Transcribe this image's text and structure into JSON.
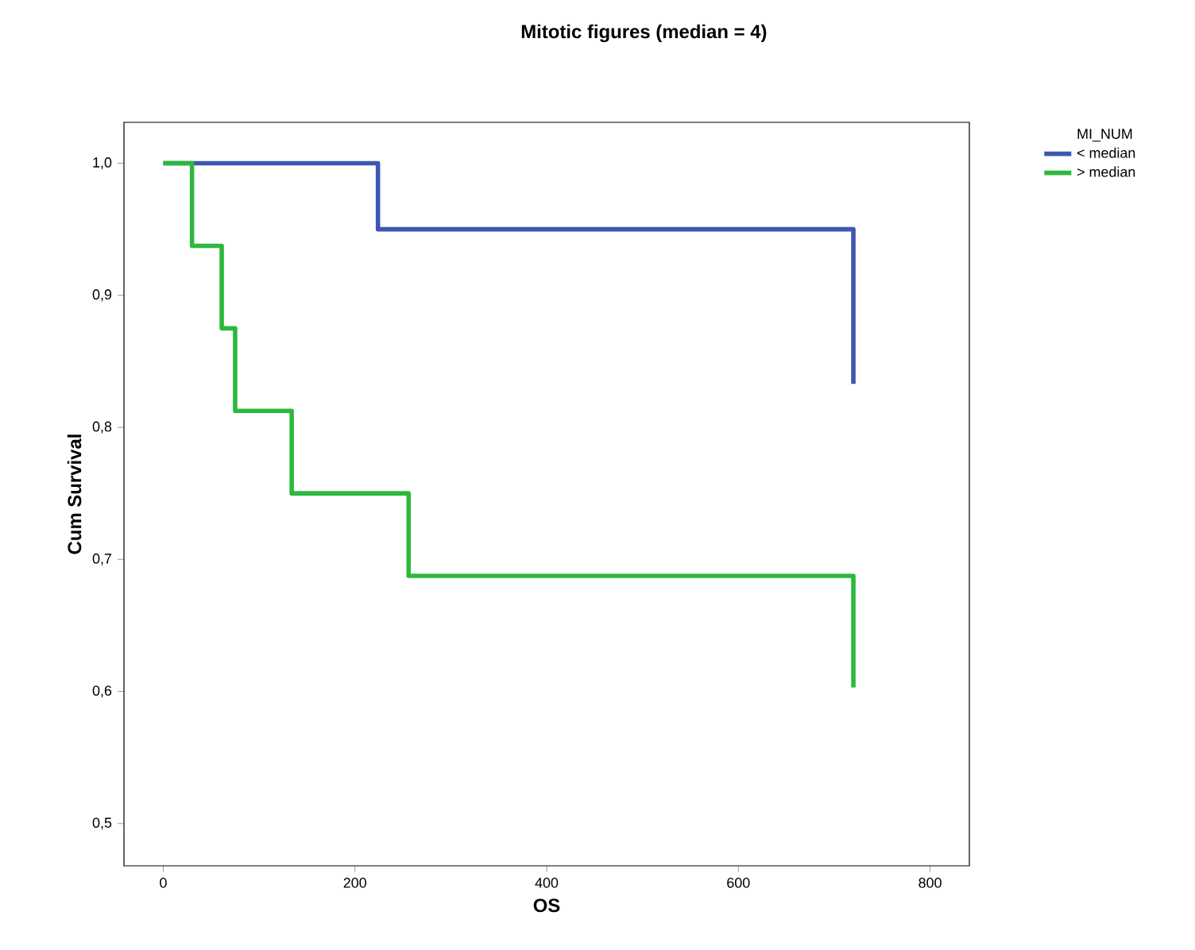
{
  "chart_data": {
    "type": "step",
    "title": "Mitotic figures (median = 4)",
    "xlabel": "OS",
    "ylabel": "Cum Survival",
    "legend_title": "MI_NUM",
    "legend": "top right",
    "xlim": [
      -41,
      841
    ],
    "ylim": [
      0.468,
      1.031
    ],
    "xticks": [
      0,
      200,
      400,
      600,
      800
    ],
    "yticks": [
      {
        "value": 0.5,
        "label": "0,5"
      },
      {
        "value": 0.6,
        "label": "0,6"
      },
      {
        "value": 0.7,
        "label": "0,7"
      },
      {
        "value": 0.8,
        "label": "0,8"
      },
      {
        "value": 0.9,
        "label": "0,9"
      },
      {
        "value": 1.0,
        "label": "1,0"
      }
    ],
    "series": [
      {
        "name": "< median",
        "color": "#3e56b0",
        "x": [
          0,
          224,
          720,
          720
        ],
        "values": [
          1.0,
          0.95,
          0.95,
          0.833
        ]
      },
      {
        "name": "> median",
        "color": "#2db83d",
        "x": [
          0,
          30,
          61,
          75,
          134,
          256,
          720,
          720
        ],
        "values": [
          1.0,
          0.9375,
          0.875,
          0.8125,
          0.75,
          0.6875,
          0.6875,
          0.603
        ]
      }
    ]
  }
}
